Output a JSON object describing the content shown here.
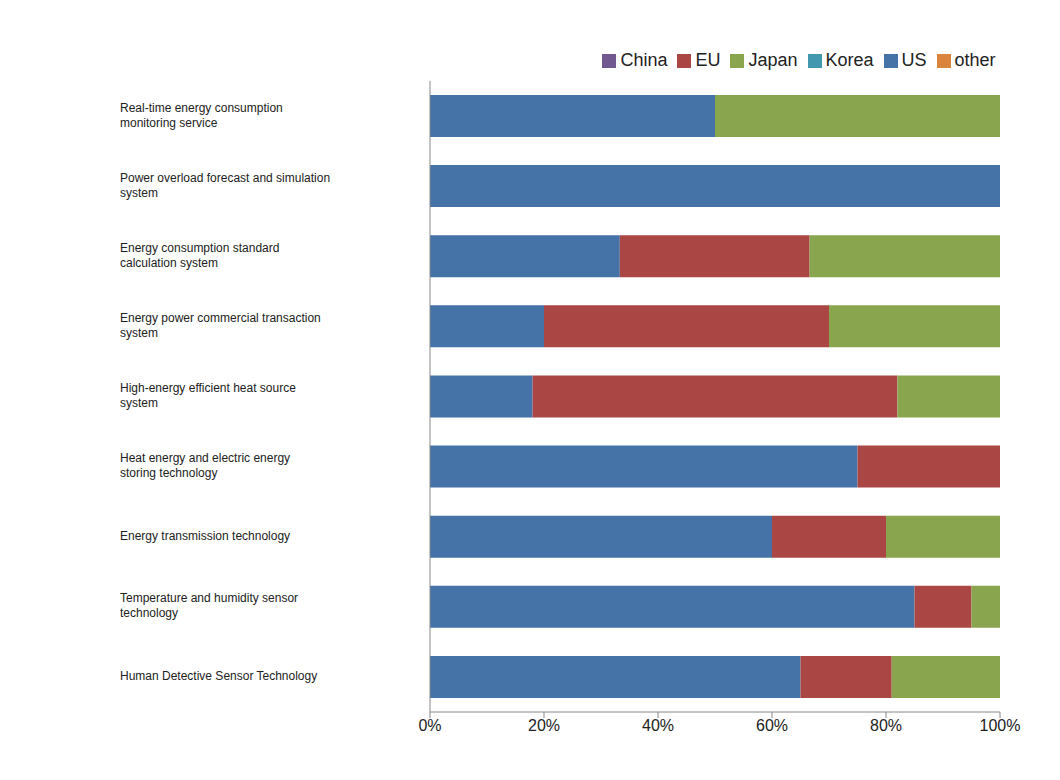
{
  "chart_data": {
    "type": "bar",
    "orientation": "horizontal",
    "stacked": true,
    "legend": "top",
    "grid": false,
    "categories": [
      "Real-time energy consumption monitoring service",
      "Power overload forecast and simulation system",
      "Energy consumption standard calculation system",
      "Energy power commercial transaction system",
      "High-energy efficient heat source system",
      "Heat energy and electric energy storing technology",
      "Energy transmission technology",
      "Temperature and humidity sensor technology",
      "Human Detective Sensor Technology"
    ],
    "series": [
      {
        "name": "US",
        "color": "#4572a7",
        "values": [
          50,
          100,
          33.3,
          20,
          18,
          75,
          60,
          85,
          65
        ]
      },
      {
        "name": "EU",
        "color": "#aa4643",
        "values": [
          0,
          0,
          33.3,
          50,
          64,
          25,
          20,
          10,
          16
        ]
      },
      {
        "name": "Japan",
        "color": "#89a54e",
        "values": [
          50,
          0,
          33.4,
          30,
          18,
          0,
          20,
          5,
          19
        ]
      },
      {
        "name": "China",
        "color": "#71588f",
        "values": [
          0,
          0,
          0,
          0,
          0,
          0,
          0,
          0,
          0
        ]
      },
      {
        "name": "Korea",
        "color": "#4198af",
        "values": [
          0,
          0,
          0,
          0,
          0,
          0,
          0,
          0,
          0
        ]
      },
      {
        "name": "other",
        "color": "#db843d",
        "values": [
          0,
          0,
          0,
          0,
          0,
          0,
          0,
          0,
          0
        ]
      }
    ],
    "xlim": [
      0,
      100
    ],
    "xticks": [
      {
        "value": 0,
        "label": "0%"
      },
      {
        "value": 20,
        "label": "20%"
      },
      {
        "value": 40,
        "label": "40%"
      },
      {
        "value": 60,
        "label": "60%"
      },
      {
        "value": 80,
        "label": "80%"
      },
      {
        "value": 100,
        "label": "100%"
      }
    ]
  }
}
